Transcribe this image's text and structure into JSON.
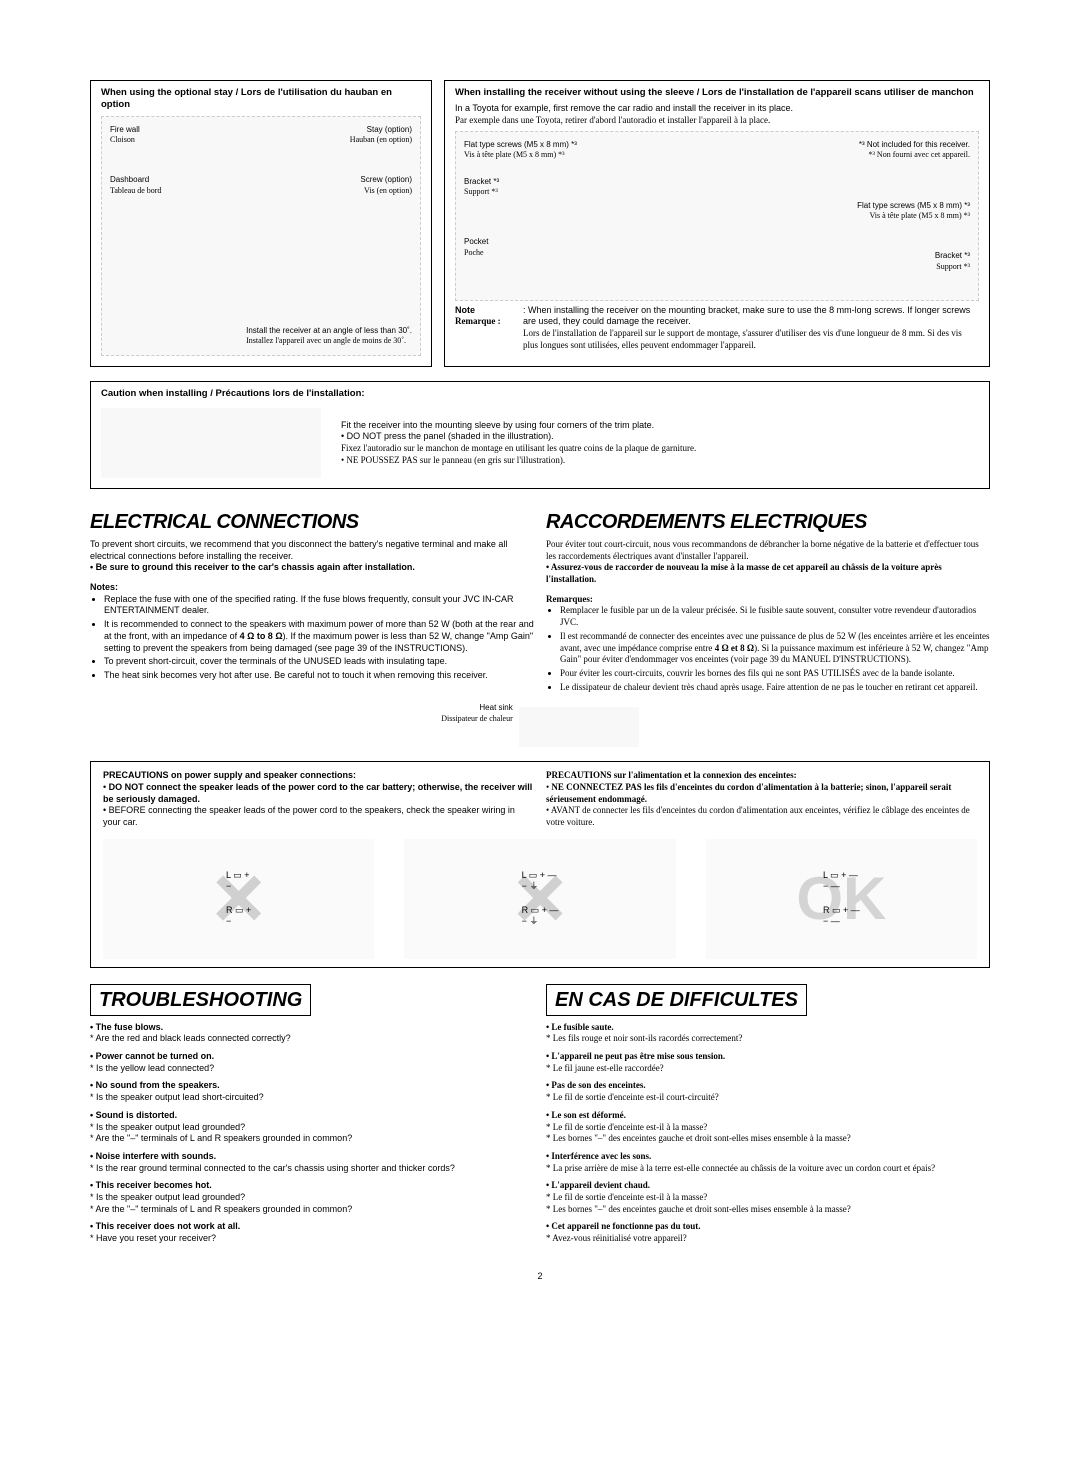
{
  "top_left_box": {
    "title": "When using the optional stay / Lors de l'utilisation du hauban en option",
    "labels": {
      "firewall_en": "Fire wall",
      "firewall_fr": "Cloison",
      "stay_en": "Stay (option)",
      "stay_fr": "Hauban (en option)",
      "dashboard_en": "Dashboard",
      "dashboard_fr": "Tableau de bord",
      "screw_en": "Screw (option)",
      "screw_fr": "Vis (en option)",
      "install_en": "Install the receiver at an angle of less than 30˚.",
      "install_fr": "Installez l'appareil avec un angle de moins de 30˚."
    }
  },
  "top_right_box": {
    "title": "When installing the receiver without using the sleeve / Lors de l'installation de l'appareil scans utiliser de manchon",
    "intro_en": "In a Toyota for example, first remove the car radio and install the receiver in its place.",
    "intro_fr": "Par exemple dans une Toyota, retirer d'abord l'autoradio et installer l'appareil à la place.",
    "labels": {
      "flatscrew_en": "Flat type screws (M5 x 8 mm) *³",
      "flatscrew_fr": "Vis à tête plate (M5 x 8 mm) *³",
      "bracket_en": "Bracket *³",
      "bracket_fr": "Support *³",
      "pocket_en": "Pocket",
      "pocket_fr": "Poche",
      "flatscrew2_en": "Flat type screws (M5 x 8 mm) *³",
      "flatscrew2_fr": "Vis à tête plate (M5 x 8 mm) *³",
      "bracket2_en": "Bracket *³",
      "bracket2_fr": "Support *³",
      "star3_en": "*³  Not included for this receiver.",
      "star3_fr": "*³  Non fourni avec cet appareil."
    },
    "note_label_en": "Note",
    "note_en": "When installing the receiver on the mounting bracket, make sure to use the 8 mm-long screws. If longer screws are used, they could damage the receiver.",
    "note_label_fr": "Remarque :",
    "note_fr": "Lors de l'installation de l'appareil sur le support de montage, s'assurer d'utiliser des vis d'une longueur de 8 mm. Si des vis plus longues sont utilisées, elles peuvent endommager l'appareil."
  },
  "caution_box": {
    "title": "Caution when installing / Précautions lors de l'installation:",
    "line1_en": "Fit the receiver into the mounting sleeve by using four corners of the trim plate.",
    "line2_en": "• DO NOT press the panel (shaded in the illustration).",
    "line1_fr": "Fixez l'autoradio sur le manchon de montage en utilisant les quatre coins de la plaque de garniture.",
    "line2_fr": "• NE POUSSEZ PAS sur le panneau (en gris sur l'illustration)."
  },
  "electrical": {
    "title_en": "ELECTRICAL CONNECTIONS",
    "title_fr": "RACCORDEMENTS ELECTRIQUES",
    "intro_en": "To prevent short circuits, we recommend that you disconnect the battery's negative terminal and make all electrical connections before installing the receiver.",
    "intro_bold_en": "• Be sure to ground this receiver to the car's chassis again after installation.",
    "intro_fr": "Pour éviter tout court-circuit, nous vous recommandons de débrancher la borne négative de la batterie et d'effectuer tous les raccordements électriques avant d'installer l'appareil.",
    "intro_bold_fr": "• Assurez-vous de raccorder de nouveau la mise à la masse de cet appareil au châssis de la voiture après l'installation.",
    "notes_title_en": "Notes:",
    "notes_en": [
      "Replace the fuse with one of the specified rating. If the fuse blows frequently, consult your JVC IN-CAR ENTERTAINMENT dealer.",
      "It is recommended to connect to the speakers with maximum power of more than 52 W (both at the rear and at the front, with an impedance of 4 Ω to 8 Ω). If the maximum power is less than 52 W, change \"Amp Gain\" setting to prevent the speakers from being damaged (see page 39 of the INSTRUCTIONS).",
      "To prevent short-circuit, cover the terminals of the UNUSED leads with insulating tape.",
      "The heat sink becomes very hot after use. Be careful not to touch it when removing this receiver."
    ],
    "notes_title_fr": "Remarques:",
    "notes_fr": [
      "Remplacer le fusible par un de la valeur précisée. Si le fusible saute souvent, consulter votre revendeur d'autoradios JVC.",
      "Il est recommandé de connecter des enceintes avec une puissance de plus de 52 W (les enceintes arrière et les enceintes avant, avec une impédance comprise entre 4 Ω et 8 Ω). Si la puissance maximum est inférieure à 52 W, changez \"Amp Gain\" pour éviter d'endommager vos enceintes (voir page 39 du MANUEL D'INSTRUCTIONS).",
      "Pour éviter les court-circuits, couvrir les bornes des fils qui ne sont PAS UTILISÉS avec de la bande isolante.",
      "Le dissipateur de chaleur devient très chaud après usage. Faire attention de ne pas le toucher en retirant cet appareil."
    ],
    "heatsink_en": "Heat sink",
    "heatsink_fr": "Dissipateur de chaleur"
  },
  "precautions": {
    "title_en": "PRECAUTIONS on power supply and speaker connections:",
    "bullet1_en": "DO NOT connect the speaker leads of the power cord to the car battery; otherwise, the receiver will be seriously damaged.",
    "bullet2_en": "BEFORE connecting the speaker leads of the power cord to the speakers, check the speaker wiring in your car.",
    "title_fr": "PRECAUTIONS sur l'alimentation et la connexion des enceintes:",
    "bullet1_fr": "NE CONNECTEZ PAS les fils d'enceintes du cordon d'alimentation à la batterie; sinon, l'appareil serait sérieusement endommagé.",
    "bullet2_fr": "AVANT de connecter les fils d'enceintes du cordon d'alimentation aux enceintes, vérifiez le câblage des enceintes de votre voiture.",
    "ok": "OK",
    "L": "L",
    "R": "R"
  },
  "troubleshooting": {
    "title_en": "TROUBLESHOOTING",
    "title_fr": "EN CAS DE DIFFICULTES",
    "items_en": [
      {
        "q": "• The fuse blows.",
        "a": [
          "* Are the red and black leads connected correctly?"
        ]
      },
      {
        "q": "• Power cannot be turned on.",
        "a": [
          "* Is the yellow lead connected?"
        ]
      },
      {
        "q": "• No sound from the speakers.",
        "a": [
          "* Is the speaker output lead short-circuited?"
        ]
      },
      {
        "q": "• Sound is distorted.",
        "a": [
          "* Is the speaker output lead grounded?",
          "* Are the \"–\" terminals of L and R speakers grounded in common?"
        ]
      },
      {
        "q": "• Noise interfere with sounds.",
        "a": [
          "* Is the rear ground terminal connected to the car's chassis using shorter and thicker cords?"
        ]
      },
      {
        "q": "• This receiver becomes hot.",
        "a": [
          "* Is the speaker output lead grounded?",
          "* Are the \"–\" terminals of L and R speakers grounded in common?"
        ]
      },
      {
        "q": "• This receiver does not work at all.",
        "a": [
          "* Have you reset your receiver?"
        ]
      }
    ],
    "items_fr": [
      {
        "q": "• Le fusible saute.",
        "a": [
          "* Les fils rouge et noir sont-ils racordés correctement?"
        ]
      },
      {
        "q": "• L'appareil ne peut pas être mise sous tension.",
        "a": [
          "* Le fil jaune est-elle raccordée?"
        ]
      },
      {
        "q": "• Pas de son des enceintes.",
        "a": [
          "* Le fil de sortie d'enceinte est-il court-circuité?"
        ]
      },
      {
        "q": "• Le son est déformé.",
        "a": [
          "* Le fil de sortie d'enceinte est-il à la masse?",
          "* Les bornes \"–\" des enceintes gauche et droit sont-elles mises ensemble à la masse?"
        ]
      },
      {
        "q": "• Interférence avec les sons.",
        "a": [
          "* La prise arrière de mise à la terre est-elle connectée au châssis de la voiture avec un cordon court et épais?"
        ]
      },
      {
        "q": "• L'appareil devient chaud.",
        "a": [
          "* Le fil de sortie d'enceinte est-il à la masse?",
          "* Les bornes \"–\" des enceintes gauche et droit sont-elles mises ensemble à la masse?"
        ]
      },
      {
        "q": "• Cet appareil ne fonctionne pas du tout.",
        "a": [
          "* Avez-vous réinitialisé votre appareil?"
        ]
      }
    ]
  },
  "page_number": "2"
}
